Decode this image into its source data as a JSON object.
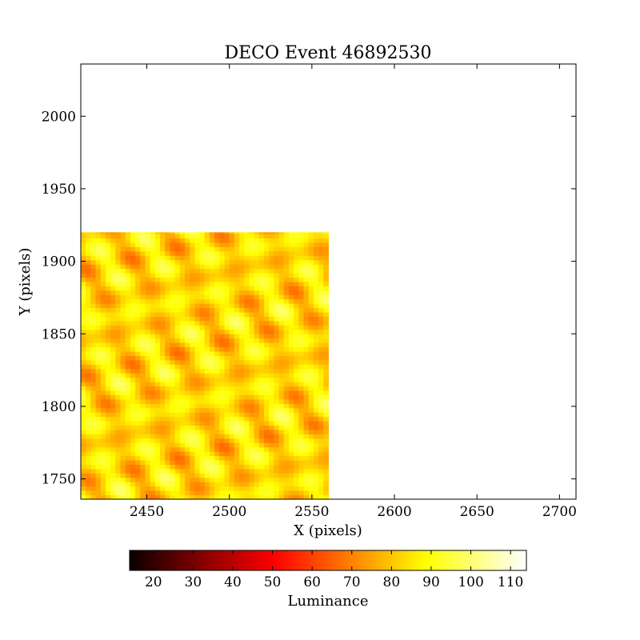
{
  "chart_data": {
    "type": "heatmap",
    "title": "DECO Event 46892530",
    "xlabel": "X (pixels)",
    "ylabel": "Y (pixels)",
    "xlim": [
      2410,
      2710
    ],
    "ylim": [
      1736,
      2036
    ],
    "xticks": [
      2450,
      2500,
      2550,
      2600,
      2650,
      2700
    ],
    "yticks": [
      1750,
      1800,
      1850,
      1900,
      1950,
      2000
    ],
    "image_extent": {
      "x": [
        2410,
        2560
      ],
      "y": [
        1736,
        1920
      ]
    },
    "luminance_range": [
      66,
      100
    ],
    "colormap": "hot",
    "colorbar": {
      "label": "Luminance",
      "min": 14,
      "max": 114,
      "ticks": [
        20,
        30,
        40,
        50,
        60,
        70,
        80,
        90,
        100,
        110
      ],
      "orientation": "horizontal"
    },
    "grid": false
  }
}
